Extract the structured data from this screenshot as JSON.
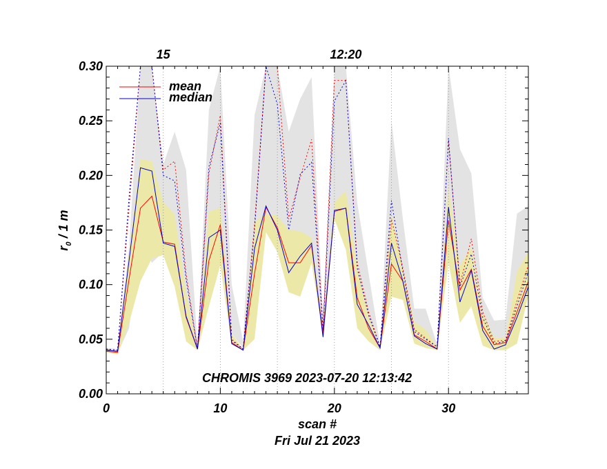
{
  "chart_data": {
    "type": "line",
    "title": "CHROMIS 3969 2023-07-20 12:13:42",
    "xlabel": "scan #",
    "date_label": "Fri Jul 21 2023",
    "ylabel_main": "r",
    "ylabel_sub": "0",
    "ylabel_rest": " / 1 m",
    "xlim": [
      0,
      37
    ],
    "ylim": [
      0.0,
      0.3
    ],
    "x_ticks": [
      0,
      10,
      20,
      30
    ],
    "x_tick_labels": [
      "0",
      "10",
      "20",
      "30"
    ],
    "y_ticks": [
      0.0,
      0.05,
      0.1,
      0.15,
      0.2,
      0.25,
      0.3
    ],
    "y_tick_labels": [
      "0.00",
      "0.05",
      "0.10",
      "0.15",
      "0.20",
      "0.25",
      "0.30"
    ],
    "time_markers": [
      {
        "x": 5,
        "label": "15"
      },
      {
        "x": 21,
        "label": "12:20"
      }
    ],
    "vertical_lines_x": [
      5,
      10,
      15,
      20,
      25,
      30,
      35
    ],
    "legend": [
      {
        "name": "mean",
        "color": "#ff0000"
      },
      {
        "name": "median",
        "color": "#0000cc"
      }
    ],
    "legend_position": "top-left",
    "x": [
      0,
      1,
      2,
      3,
      4,
      5,
      6,
      7,
      8,
      9,
      10,
      11,
      12,
      13,
      14,
      15,
      16,
      17,
      18,
      19,
      20,
      21,
      22,
      23,
      24,
      25,
      26,
      27,
      28,
      29,
      30,
      31,
      32,
      33,
      34,
      35,
      36,
      37
    ],
    "series": [
      {
        "name": "mean",
        "color": "#ff0000",
        "style": "solid",
        "values": [
          0.039,
          0.038,
          0.105,
          0.17,
          0.181,
          0.139,
          0.137,
          0.07,
          0.041,
          0.122,
          0.155,
          0.047,
          0.04,
          0.11,
          0.171,
          0.152,
          0.12,
          0.12,
          0.136,
          0.055,
          0.167,
          0.17,
          0.088,
          0.06,
          0.042,
          0.119,
          0.103,
          0.054,
          0.048,
          0.041,
          0.159,
          0.095,
          0.114,
          0.062,
          0.045,
          0.047,
          0.075,
          0.103
        ]
      },
      {
        "name": "median",
        "color": "#0000cc",
        "style": "solid",
        "values": [
          0.04,
          0.039,
          0.122,
          0.207,
          0.204,
          0.138,
          0.135,
          0.071,
          0.041,
          0.143,
          0.15,
          0.046,
          0.04,
          0.133,
          0.172,
          0.15,
          0.111,
          0.126,
          0.138,
          0.052,
          0.168,
          0.17,
          0.082,
          0.063,
          0.042,
          0.138,
          0.103,
          0.053,
          0.046,
          0.041,
          0.171,
          0.084,
          0.113,
          0.058,
          0.041,
          0.045,
          0.07,
          0.098
        ]
      },
      {
        "name": "mean upper",
        "color": "#ff0000",
        "style": "dotted",
        "values": [
          0.041,
          0.04,
          0.17,
          0.3,
          0.3,
          0.205,
          0.213,
          0.11,
          0.041,
          0.202,
          0.255,
          0.05,
          0.041,
          0.155,
          0.3,
          0.3,
          0.16,
          0.198,
          0.233,
          0.06,
          0.287,
          0.287,
          0.12,
          0.075,
          0.043,
          0.16,
          0.115,
          0.059,
          0.051,
          0.043,
          0.232,
          0.1,
          0.142,
          0.075,
          0.048,
          0.049,
          0.085,
          0.118
        ]
      },
      {
        "name": "median upper",
        "color": "#0000cc",
        "style": "dotted",
        "values": [
          0.041,
          0.04,
          0.18,
          0.3,
          0.3,
          0.2,
          0.195,
          0.105,
          0.041,
          0.208,
          0.248,
          0.049,
          0.041,
          0.15,
          0.3,
          0.265,
          0.15,
          0.201,
          0.212,
          0.058,
          0.268,
          0.287,
          0.115,
          0.072,
          0.043,
          0.177,
          0.112,
          0.057,
          0.05,
          0.043,
          0.234,
          0.098,
          0.128,
          0.07,
          0.046,
          0.048,
          0.08,
          0.112
        ]
      }
    ],
    "bands": [
      {
        "name": "gray range",
        "color": "#e3e3e3",
        "lower": [
          0.038,
          0.037,
          0.06,
          0.14,
          0.12,
          0.13,
          0.12,
          0.075,
          0.04,
          0.13,
          0.12,
          0.055,
          0.042,
          0.12,
          0.16,
          0.15,
          0.12,
          0.12,
          0.12,
          0.055,
          0.16,
          0.15,
          0.1,
          0.068,
          0.042,
          0.12,
          0.1,
          0.055,
          0.047,
          0.04,
          0.15,
          0.093,
          0.112,
          0.057,
          0.04,
          0.042,
          0.08,
          0.1
        ],
        "upper": [
          0.042,
          0.041,
          0.135,
          0.3,
          0.3,
          0.21,
          0.24,
          0.205,
          0.045,
          0.26,
          0.3,
          0.1,
          0.048,
          0.255,
          0.3,
          0.3,
          0.24,
          0.27,
          0.29,
          0.07,
          0.3,
          0.3,
          0.175,
          0.11,
          0.045,
          0.25,
          0.16,
          0.078,
          0.078,
          0.045,
          0.3,
          0.224,
          0.202,
          0.088,
          0.067,
          0.068,
          0.165,
          0.172
        ]
      },
      {
        "name": "yellow range",
        "color": "#ece8a8",
        "lower": [
          0.038,
          0.036,
          0.065,
          0.103,
          0.124,
          0.127,
          0.098,
          0.048,
          0.04,
          0.08,
          0.118,
          0.045,
          0.04,
          0.05,
          0.148,
          0.13,
          0.093,
          0.089,
          0.12,
          0.053,
          0.16,
          0.132,
          0.06,
          0.048,
          0.04,
          0.089,
          0.086,
          0.046,
          0.042,
          0.04,
          0.12,
          0.065,
          0.08,
          0.044,
          0.04,
          0.04,
          0.046,
          0.09
        ]
      },
      {
        "name": "yellow range upper",
        "color": "#ece8a8",
        "upper": [
          0.041,
          0.04,
          0.128,
          0.215,
          0.213,
          0.176,
          0.164,
          0.093,
          0.042,
          0.167,
          0.17,
          0.055,
          0.041,
          0.157,
          0.165,
          0.163,
          0.15,
          0.149,
          0.143,
          0.059,
          0.175,
          0.186,
          0.116,
          0.073,
          0.043,
          0.164,
          0.115,
          0.066,
          0.059,
          0.043,
          0.189,
          0.117,
          0.135,
          0.074,
          0.051,
          0.051,
          0.112,
          0.13
        ]
      }
    ]
  }
}
